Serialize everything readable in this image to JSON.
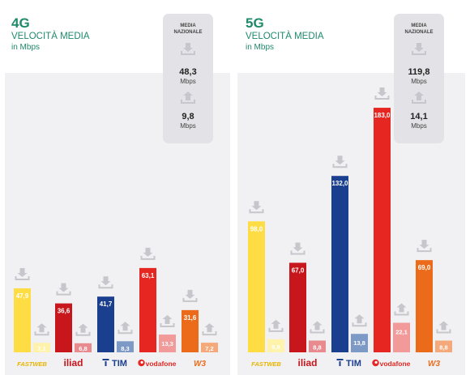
{
  "colors": {
    "panel": "#f1f1f3",
    "avg_box": "#e3e3e7",
    "icon": "#c6c6cc",
    "label_dark": "#444444",
    "header": "#1f8a6a",
    "operators": {
      "fastweb": {
        "main": "#fedd44",
        "light": "#fff2ab",
        "logo": "#e8b400"
      },
      "iliad": {
        "main": "#c8161d",
        "light": "#e98a8e",
        "logo": "#c8161d"
      },
      "tim": {
        "main": "#1b3f8f",
        "light": "#7d99c6",
        "logo": "#1b3f8f"
      },
      "vodafone": {
        "main": "#e52621",
        "light": "#f29a9a",
        "logo": "#e52621"
      },
      "wind3": {
        "main": "#eb6b1b",
        "light": "#f5a97a",
        "logo": "#eb6b1b"
      }
    }
  },
  "chart_data": [
    {
      "type": "bar",
      "title": "4G",
      "subtitle": "VELOCITÀ MEDIA",
      "unit": "in Mbps",
      "categories": [
        "fastweb",
        "iliad",
        "tim",
        "vodafone",
        "wind3"
      ],
      "category_labels": [
        "FASTWEB",
        "iliad",
        "TIM",
        "vodafone",
        "W3"
      ],
      "series": [
        {
          "direction": "download",
          "values": [
            47.9,
            36.6,
            41.7,
            63.1,
            31.6
          ],
          "labels": [
            "47,9",
            "36,6",
            "41,7",
            "63,1",
            "31,6"
          ]
        },
        {
          "direction": "upload",
          "values": [
            7.1,
            6.8,
            8.3,
            13.3,
            7.2
          ],
          "labels": [
            "7,1",
            "6,8",
            "8,3",
            "13,3",
            "7,2"
          ]
        }
      ],
      "national_average": {
        "title_line1": "MEDIA",
        "title_line2": "NAZIONALE",
        "download": "48,3",
        "upload": "9,8",
        "unit": "Mbps"
      }
    },
    {
      "type": "bar",
      "title": "5G",
      "subtitle": "VELOCITÀ MEDIA",
      "unit": "in Mbps",
      "categories": [
        "fastweb",
        "iliad",
        "tim",
        "vodafone",
        "wind3"
      ],
      "category_labels": [
        "FASTWEB",
        "iliad",
        "TIM",
        "vodafone",
        "W3"
      ],
      "series": [
        {
          "direction": "download",
          "values": [
            98.0,
            67.0,
            132.0,
            183.0,
            69.0
          ],
          "labels": [
            "98,0",
            "67,0",
            "132,0",
            "183,0",
            "69,0"
          ]
        },
        {
          "direction": "upload",
          "values": [
            9.8,
            8.8,
            13.8,
            22.1,
            8.8
          ],
          "labels": [
            "9,8",
            "8,8",
            "13,8",
            "22,1",
            "8,8"
          ]
        }
      ],
      "national_average": {
        "title_line1": "MEDIA",
        "title_line2": "NAZIONALE",
        "download": "119,8",
        "upload": "14,1",
        "unit": "Mbps"
      }
    }
  ]
}
